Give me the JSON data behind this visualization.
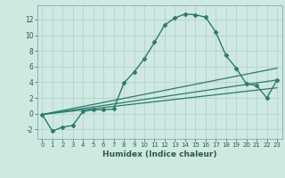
{
  "xlabel": "Humidex (Indice chaleur)",
  "ylabel": "",
  "background_color": "#cfe8e2",
  "grid_color": "#aacfc8",
  "line_color": "#2a7a6a",
  "xlim": [
    -0.5,
    23.5
  ],
  "ylim": [
    -3.2,
    13.8
  ],
  "xticks": [
    0,
    1,
    2,
    3,
    4,
    5,
    6,
    7,
    8,
    9,
    10,
    11,
    12,
    13,
    14,
    15,
    16,
    17,
    18,
    19,
    20,
    21,
    22,
    23
  ],
  "yticks": [
    -2,
    0,
    2,
    4,
    6,
    8,
    10,
    12
  ],
  "series": [
    {
      "x": [
        0,
        1,
        2,
        3,
        4,
        5,
        6,
        7,
        8,
        9,
        10,
        11,
        12,
        13,
        14,
        15,
        16,
        17,
        18,
        19,
        20,
        21,
        22,
        23
      ],
      "y": [
        -0.1,
        -2.2,
        -1.7,
        -1.5,
        0.3,
        0.5,
        0.5,
        0.6,
        3.9,
        5.3,
        7.0,
        9.1,
        11.3,
        12.2,
        12.7,
        12.6,
        12.3,
        10.4,
        7.4,
        5.8,
        3.8,
        3.6,
        2.0,
        4.3
      ],
      "marker": "D",
      "markersize": 2.5,
      "linewidth": 1.0,
      "linestyle": "-"
    },
    {
      "x": [
        0,
        23
      ],
      "y": [
        -0.1,
        5.8
      ],
      "marker": null,
      "linewidth": 0.9,
      "linestyle": "-"
    },
    {
      "x": [
        0,
        23
      ],
      "y": [
        -0.1,
        4.3
      ],
      "marker": null,
      "linewidth": 0.9,
      "linestyle": "-"
    },
    {
      "x": [
        0,
        23
      ],
      "y": [
        -0.1,
        3.3
      ],
      "marker": null,
      "linewidth": 0.9,
      "linestyle": "-"
    }
  ]
}
